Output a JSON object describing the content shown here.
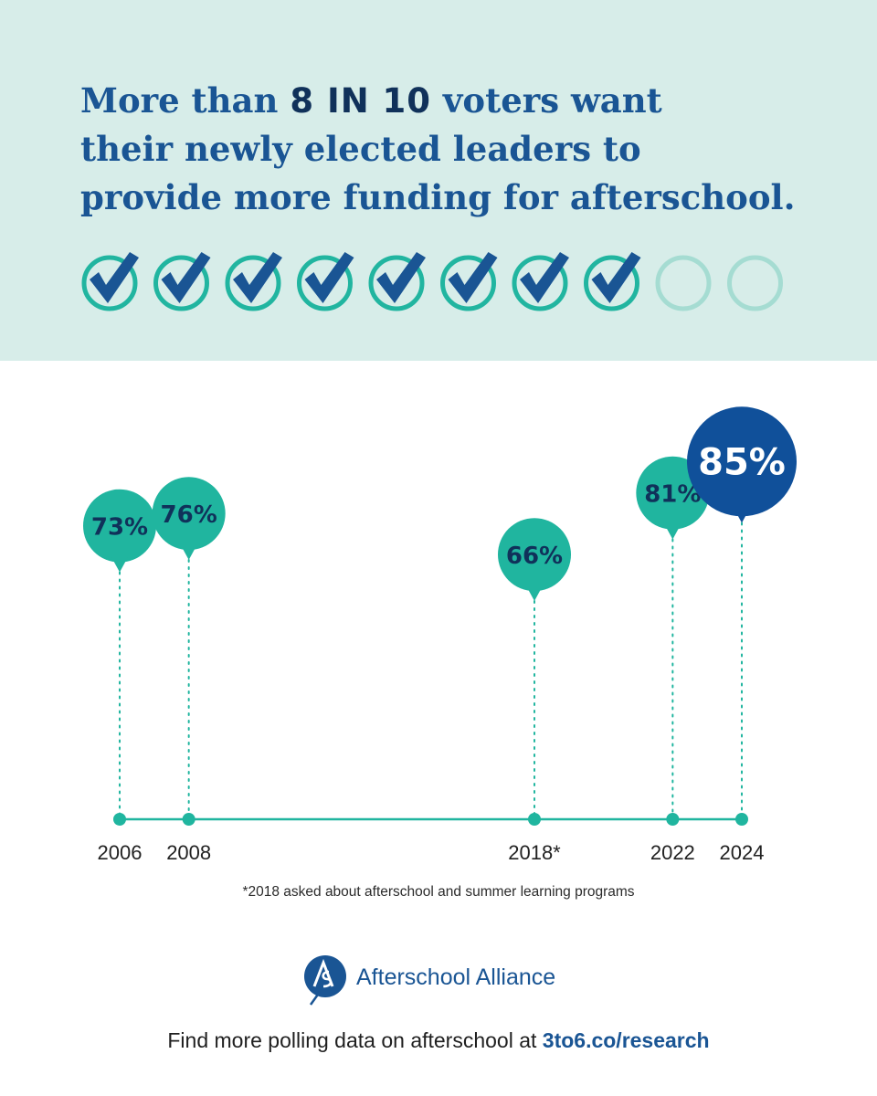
{
  "headline": {
    "line1_before": "More than ",
    "line1_highlight": "8 IN 10",
    "line1_after": " voters want",
    "line2": "their newly elected leaders to",
    "line3": "provide more funding for afterschool."
  },
  "checks": {
    "total": 10,
    "checked": 8,
    "check_color": "#1a5594",
    "ring_color": "#21b5a0",
    "empty_ring_color": "#a5dcd2"
  },
  "chart_data": {
    "type": "scatter",
    "title": "",
    "xlabel": "",
    "ylabel": "",
    "categories": [
      "2006",
      "2008",
      "2018*",
      "2022",
      "2024"
    ],
    "x": [
      2006,
      2008,
      2018,
      2022,
      2024
    ],
    "values": [
      73,
      76,
      66,
      81,
      85
    ],
    "value_labels": [
      "73%",
      "76%",
      "66%",
      "81%",
      "85%"
    ],
    "highlight_index": 4,
    "colors": {
      "default": "#20b59f",
      "highlight": "#10509a",
      "label_default": "#10315a",
      "label_highlight": "#ffffff"
    },
    "grid": false
  },
  "footnote": "*2018 asked about afterschool and summer learning programs",
  "logo": {
    "name": "Afterschool Alliance",
    "mark_letters": "AS"
  },
  "footer": {
    "text": "Find more polling data on afterschool at ",
    "link": "3to6.co/research"
  }
}
